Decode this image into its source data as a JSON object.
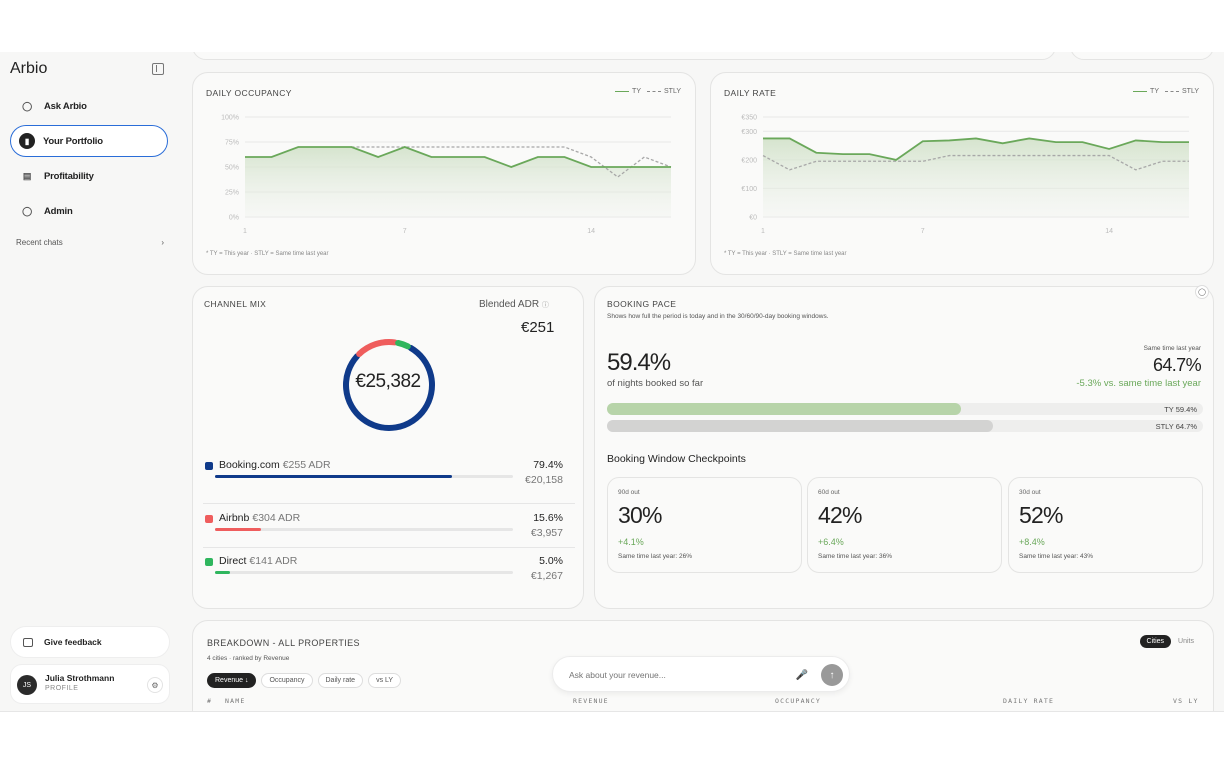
{
  "app": {
    "brand": "Arbio"
  },
  "sidebar": {
    "items": [
      {
        "label": "Ask Arbio",
        "icon": "chat-bubble-icon"
      },
      {
        "label": "Your Portfolio",
        "icon": "chart-icon"
      },
      {
        "label": "Profitability",
        "icon": "wallet-icon"
      },
      {
        "label": "Admin",
        "icon": "shield-icon"
      }
    ],
    "recent_chats": "Recent chats",
    "feedback": "Give feedback",
    "profile": {
      "initials": "JS",
      "name": "Julia Strothmann",
      "role": "PROFILE"
    }
  },
  "occupancy": {
    "title": "DAILY OCCUPANCY",
    "legend_ty": "TY",
    "legend_stly": "STLY",
    "footnote": "* TY = This year · STLY = Same time last year"
  },
  "rate": {
    "title": "DAILY RATE",
    "legend_ty": "TY",
    "legend_stly": "STLY",
    "footnote": "* TY = This year · STLY = Same time last year"
  },
  "chart_data": [
    {
      "type": "area",
      "title": "DAILY OCCUPANCY",
      "x": [
        1,
        2,
        3,
        4,
        5,
        6,
        7,
        8,
        9,
        10,
        11,
        12,
        13,
        14,
        15,
        16,
        17
      ],
      "xticks": [
        "1",
        "7",
        "14"
      ],
      "yticks": [
        "100%",
        "75%",
        "50%",
        "25%",
        "0%"
      ],
      "ylim": [
        0,
        100
      ],
      "series": [
        {
          "name": "TY",
          "values": [
            60,
            60,
            70,
            70,
            70,
            60,
            70,
            60,
            60,
            60,
            50,
            60,
            60,
            50,
            50,
            50,
            50
          ]
        },
        {
          "name": "STLY",
          "values": [
            null,
            null,
            null,
            null,
            70,
            70,
            70,
            70,
            70,
            70,
            70,
            70,
            70,
            60,
            40,
            60,
            50
          ]
        }
      ],
      "grid": true
    },
    {
      "type": "area",
      "title": "DAILY RATE",
      "x": [
        1,
        2,
        3,
        4,
        5,
        6,
        7,
        8,
        9,
        10,
        11,
        12,
        13,
        14,
        15,
        16,
        17
      ],
      "xticks": [
        "1",
        "7",
        "14"
      ],
      "yticks": [
        "€350",
        "€300",
        "€200",
        "€100",
        "€0"
      ],
      "ylim": [
        0,
        350
      ],
      "series": [
        {
          "name": "TY",
          "values": [
            275,
            275,
            225,
            220,
            220,
            200,
            265,
            268,
            275,
            258,
            275,
            262,
            262,
            238,
            268,
            262,
            262
          ]
        },
        {
          "name": "STLY",
          "values": [
            215,
            165,
            195,
            195,
            195,
            195,
            195,
            215,
            215,
            215,
            215,
            215,
            215,
            215,
            165,
            195,
            195
          ]
        }
      ],
      "grid": true
    },
    {
      "type": "pie",
      "title": "CHANNEL MIX",
      "categories": [
        "Booking.com",
        "Airbnb",
        "Direct"
      ],
      "values": [
        79.4,
        15.6,
        5.0
      ]
    }
  ],
  "channel_mix": {
    "title": "CHANNEL MIX",
    "blended_label": "Blended ADR",
    "blended_value": "€251",
    "total": "€25,382",
    "channels": [
      {
        "name": "Booking.com",
        "adr": "€255 ADR",
        "pct": "79.4%",
        "share": 0.794,
        "revenue": "€20,158",
        "color": "#0f3a8a"
      },
      {
        "name": "Airbnb",
        "adr": "€304 ADR",
        "pct": "15.6%",
        "share": 0.156,
        "revenue": "€3,957",
        "color": "#ef5d5d"
      },
      {
        "name": "Direct",
        "adr": "€141 ADR",
        "pct": "5.0%",
        "share": 0.05,
        "revenue": "€1,267",
        "color": "#2fb65e"
      }
    ]
  },
  "booking_pace": {
    "title": "BOOKING PACE",
    "subtitle": "Shows how full the period is today and in the 30/60/90-day booking windows.",
    "big_value": "59.4%",
    "big_sub": "of nights booked so far",
    "stly_label": "Same time last year",
    "stly_value": "64.7%",
    "diff": "-5.3% vs. same time last year",
    "bar_ty_label": "TY 59.4%",
    "bar_ty_value": 0.594,
    "bar_stly_label": "STLY 64.7%",
    "bar_stly_value": 0.647,
    "checkpoints_title": "Booking Window Checkpoints",
    "checkpoints": [
      {
        "label": "90d out",
        "value": "30%",
        "diff": "+4.1%",
        "stly": "Same time last year: 26%"
      },
      {
        "label": "60d out",
        "value": "42%",
        "diff": "+6.4%",
        "stly": "Same time last year: 36%"
      },
      {
        "label": "30d out",
        "value": "52%",
        "diff": "+8.4%",
        "stly": "Same time last year: 43%"
      }
    ]
  },
  "breakdown": {
    "title": "BREAKDOWN - ALL PROPERTIES",
    "subtitle": "4 cities · ranked by Revenue",
    "toggle": [
      "Cities",
      "Units"
    ],
    "sorts": [
      "Revenue ↓",
      "Occupancy",
      "Daily rate",
      "vs LY"
    ],
    "columns": [
      "#",
      "NAME",
      "REVENUE",
      "OCCUPANCY",
      "DAILY RATE",
      "VS LY"
    ]
  },
  "ask": {
    "placeholder": "Ask about your revenue..."
  },
  "colors": {
    "accent_green": "#6aa85a",
    "active_border": "#2a6dd8"
  }
}
